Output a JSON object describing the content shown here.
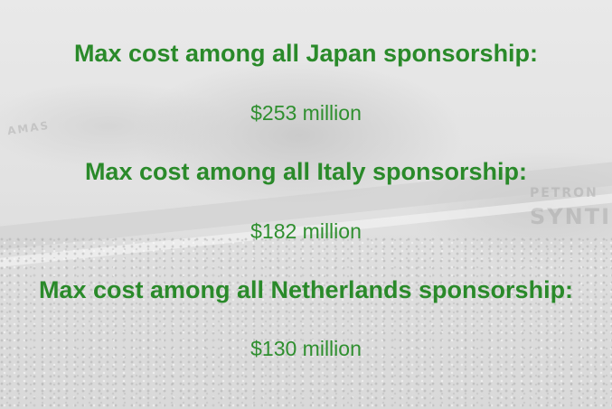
{
  "sections": [
    {
      "heading": "Max cost among all Japan sponsorship:",
      "value": "$253 million"
    },
    {
      "heading": "Max cost among all Italy sponsorship:",
      "value": "$182 million"
    },
    {
      "heading": "Max cost among all Netherlands sponsorship:",
      "value": "$130 million"
    }
  ],
  "background": {
    "watermark_line1": "PETRON",
    "watermark_line2": "SYNTIU",
    "watermark_side": "AMAS"
  },
  "colors": {
    "heading": "#2a8a2a",
    "value": "#2f8f2f",
    "background": "#e6e6e6"
  }
}
